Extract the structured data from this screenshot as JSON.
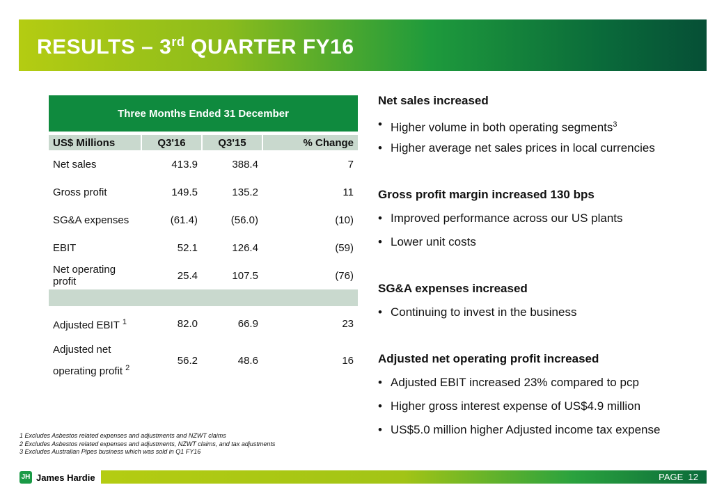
{
  "title": {
    "main": "RESULTS – 3",
    "sup": "rd",
    "rest": " QUARTER FY16"
  },
  "table": {
    "caption": "Three Months Ended 31 December",
    "headers": [
      "US$ Millions",
      "Q3'16",
      "Q3'15",
      "% Change"
    ],
    "rows": [
      [
        "Net sales",
        "413.9",
        "388.4",
        "7"
      ],
      [
        "Gross profit",
        "149.5",
        "135.2",
        "11"
      ],
      [
        "SG&A expenses",
        "(61.4)",
        "(56.0)",
        "(10)"
      ],
      [
        "EBIT",
        "52.1",
        "126.4",
        "(59)"
      ],
      [
        "Net operating profit",
        "25.4",
        "107.5",
        "(76)"
      ]
    ],
    "adj_rows": [
      [
        "Adjusted EBIT",
        "1",
        "82.0",
        "66.9",
        "23"
      ],
      [
        "Adjusted net operating profit",
        "2",
        "56.2",
        "48.6",
        "16"
      ]
    ]
  },
  "commentary": [
    {
      "heading": "Net sales increased",
      "bullets": [
        "Higher volume in both operating segments",
        "Higher average net sales prices in local currencies"
      ],
      "sup": "3"
    },
    {
      "heading": "Gross profit margin increased 130 bps",
      "bullets": [
        "Improved performance across our US plants",
        "Lower unit costs"
      ]
    },
    {
      "heading": "SG&A expenses increased",
      "bullets": [
        "Continuing to invest in the business"
      ]
    },
    {
      "heading": "Adjusted net operating profit increased",
      "bullets": [
        "Adjusted EBIT increased 23% compared to pcp",
        "Higher gross interest expense of US$4.9 million",
        "US$5.0 million higher Adjusted income tax expense"
      ]
    }
  ],
  "footnotes": [
    "1  Excludes Asbestos related expenses and adjustments and NZWT claims",
    "2  Excludes Asbestos related expenses and adjustments, NZWT claims,  and tax adjustments",
    "3  Excludes Australian Pipes business which was sold in Q1 FY16"
  ],
  "footer": {
    "logo": "James Hardie",
    "page_label": "PAGE",
    "page_number": "12"
  }
}
